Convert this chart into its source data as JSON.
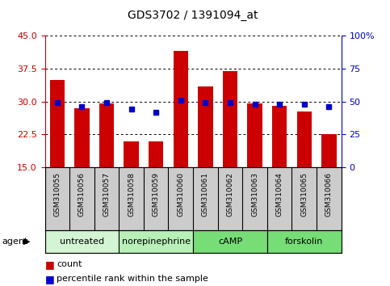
{
  "title": "GDS3702 / 1391094_at",
  "samples": [
    "GSM310055",
    "GSM310056",
    "GSM310057",
    "GSM310058",
    "GSM310059",
    "GSM310060",
    "GSM310061",
    "GSM310062",
    "GSM310063",
    "GSM310064",
    "GSM310065",
    "GSM310066"
  ],
  "counts": [
    35.0,
    28.5,
    29.5,
    21.0,
    21.0,
    41.5,
    33.5,
    37.0,
    29.5,
    29.0,
    27.8,
    22.5
  ],
  "percentiles": [
    49,
    46,
    49,
    44,
    42,
    51,
    49,
    49,
    48,
    48,
    48,
    46
  ],
  "bar_bottom": 15,
  "ylim": [
    15,
    45
  ],
  "ylim_right": [
    0,
    100
  ],
  "yticks_left": [
    15,
    22.5,
    30,
    37.5,
    45
  ],
  "yticks_right": [
    0,
    25,
    50,
    75,
    100
  ],
  "bar_color": "#cc0000",
  "dot_color": "#0000cc",
  "bar_width": 0.6,
  "groups": [
    {
      "label": "untreated",
      "start": 0,
      "end": 3,
      "color": "#d4f5d4"
    },
    {
      "label": "norepinephrine",
      "start": 3,
      "end": 6,
      "color": "#b8f0b8"
    },
    {
      "label": "cAMP",
      "start": 6,
      "end": 9,
      "color": "#77dd77"
    },
    {
      "label": "forskolin",
      "start": 9,
      "end": 12,
      "color": "#66cc66"
    }
  ],
  "agent_label": "agent",
  "legend_count_label": "count",
  "legend_percentile_label": "percentile rank within the sample",
  "grid_color": "#000000",
  "sample_bg_color": "#cccccc",
  "plot_bg_color": "#ffffff",
  "left_axis_color": "#cc0000",
  "right_axis_color": "#0000cc"
}
